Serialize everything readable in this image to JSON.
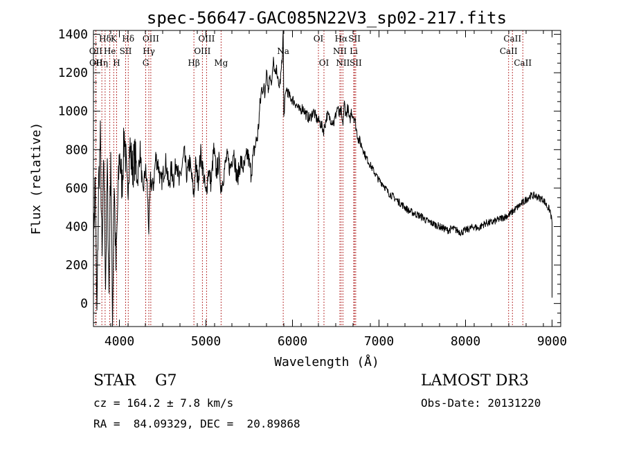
{
  "chart_data": {
    "type": "line",
    "title": "spec-56647-GAC085N22V3_sp02-217.fits",
    "xlabel": "Wavelength (Å)",
    "ylabel": "Flux (relative)",
    "xlim": [
      3700,
      9100
    ],
    "ylim": [
      -120,
      1420
    ],
    "x_ticks": [
      4000,
      5000,
      6000,
      7000,
      8000,
      9000
    ],
    "x_tick_labels": [
      "4000",
      "5000",
      "6000",
      "7000",
      "8000",
      "9000"
    ],
    "y_ticks": [
      0,
      200,
      400,
      600,
      800,
      1000,
      1200,
      1400
    ],
    "y_tick_labels": [
      "0",
      "200",
      "400",
      "600",
      "800",
      "1000",
      "1200",
      "1400"
    ],
    "grid": false,
    "line_color": "#000000",
    "marker_color": "#b22222",
    "series": [
      {
        "name": "flux",
        "x": [
          3700,
          3720,
          3740,
          3760,
          3780,
          3800,
          3820,
          3840,
          3860,
          3880,
          3900,
          3920,
          3940,
          3960,
          3980,
          4000,
          4030,
          4060,
          4090,
          4120,
          4150,
          4180,
          4210,
          4240,
          4270,
          4300,
          4320,
          4340,
          4360,
          4390,
          4420,
          4450,
          4480,
          4510,
          4540,
          4570,
          4600,
          4630,
          4660,
          4690,
          4720,
          4750,
          4780,
          4810,
          4840,
          4861,
          4880,
          4910,
          4940,
          4970,
          5000,
          5030,
          5060,
          5090,
          5120,
          5150,
          5175,
          5200,
          5240,
          5280,
          5320,
          5360,
          5400,
          5440,
          5480,
          5520,
          5560,
          5600,
          5620,
          5640,
          5660,
          5680,
          5700,
          5720,
          5740,
          5760,
          5780,
          5800,
          5820,
          5840,
          5860,
          5880,
          5893,
          5900,
          5910,
          5930,
          5960,
          6000,
          6040,
          6080,
          6120,
          6160,
          6200,
          6240,
          6280,
          6320,
          6360,
          6400,
          6440,
          6480,
          6520,
          6540,
          6563,
          6580,
          6600,
          6620,
          6640,
          6660,
          6680,
          6700,
          6720,
          6740,
          6760,
          6800,
          6850,
          6900,
          6950,
          7000,
          7050,
          7100,
          7150,
          7200,
          7250,
          7300,
          7350,
          7400,
          7450,
          7500,
          7550,
          7600,
          7650,
          7700,
          7750,
          7800,
          7850,
          7900,
          7950,
          8000,
          8050,
          8100,
          8150,
          8200,
          8250,
          8300,
          8350,
          8400,
          8450,
          8500,
          8550,
          8600,
          8650,
          8700,
          8750,
          8800,
          8850,
          8900,
          8950,
          8980,
          9000
        ],
        "y": [
          300,
          650,
          -80,
          620,
          850,
          200,
          760,
          120,
          700,
          50,
          820,
          -100,
          640,
          180,
          500,
          780,
          620,
          900,
          560,
          820,
          700,
          760,
          640,
          800,
          560,
          700,
          620,
          380,
          640,
          600,
          760,
          720,
          620,
          680,
          740,
          600,
          700,
          640,
          760,
          620,
          700,
          780,
          660,
          740,
          640,
          560,
          720,
          640,
          780,
          680,
          560,
          700,
          620,
          800,
          680,
          740,
          600,
          660,
          760,
          700,
          800,
          640,
          740,
          700,
          780,
          680,
          800,
          880,
          1000,
          1100,
          1140,
          1080,
          1240,
          1100,
          1200,
          1140,
          1260,
          1180,
          1220,
          1120,
          1160,
          1260,
          1420,
          960,
          1040,
          1120,
          1080,
          1060,
          1040,
          1000,
          1020,
          980,
          960,
          1000,
          960,
          940,
          900,
          980,
          960,
          940,
          1020,
          980,
          1000,
          920,
          1040,
          980,
          1020,
          940,
          1000,
          980,
          960,
          900,
          860,
          820,
          760,
          720,
          680,
          640,
          620,
          580,
          560,
          540,
          520,
          500,
          480,
          470,
          460,
          450,
          430,
          420,
          410,
          400,
          390,
          380,
          390,
          380,
          370,
          380,
          390,
          400,
          390,
          410,
          420,
          420,
          430,
          440,
          450,
          460,
          480,
          500,
          520,
          540,
          560,
          560,
          550,
          540,
          500,
          480,
          420
        ]
      }
    ],
    "line_markers": [
      {
        "label": "Hδ",
        "x": 4102,
        "row": 0
      },
      {
        "label": "K",
        "x": 3934,
        "row": 0
      },
      {
        "label": "Hδ",
        "x": 3835,
        "row": 0
      },
      {
        "label": "OIII",
        "x": 4363,
        "row": 0
      },
      {
        "label": "OIII",
        "x": 5007,
        "row": 0
      },
      {
        "label": "OI",
        "x": 6300,
        "row": 0
      },
      {
        "label": "Hα",
        "x": 6563,
        "row": 0
      },
      {
        "label": "SII",
        "x": 6717,
        "row": 0
      },
      {
        "label": "CaII",
        "x": 8542,
        "row": 0
      },
      {
        "label": "OII",
        "x": 3727,
        "row": 1
      },
      {
        "label": "He",
        "x": 3889,
        "row": 1
      },
      {
        "label": "SII",
        "x": 4072,
        "row": 1
      },
      {
        "label": "Hγ",
        "x": 4340,
        "row": 1
      },
      {
        "label": "OIII",
        "x": 4959,
        "row": 1
      },
      {
        "label": "Na",
        "x": 5893,
        "row": 1
      },
      {
        "label": "NII",
        "x": 6548,
        "row": 1
      },
      {
        "label": "Li",
        "x": 6708,
        "row": 1
      },
      {
        "label": "CaII",
        "x": 8498,
        "row": 1
      },
      {
        "label": "OII",
        "x": 3729,
        "row": 2
      },
      {
        "label": "Hη",
        "x": 3797,
        "row": 2
      },
      {
        "label": "H",
        "x": 3968,
        "row": 2
      },
      {
        "label": "G",
        "x": 4304,
        "row": 2
      },
      {
        "label": "Hβ",
        "x": 4861,
        "row": 2
      },
      {
        "label": "Mg",
        "x": 5175,
        "row": 2
      },
      {
        "label": "OI",
        "x": 6364,
        "row": 2
      },
      {
        "label": "NII",
        "x": 6583,
        "row": 2
      },
      {
        "label": "SII",
        "x": 6731,
        "row": 2
      },
      {
        "label": "CaII",
        "x": 8662,
        "row": 2
      }
    ]
  },
  "info": {
    "class_line": "STAR    G7",
    "survey": "LAMOST DR3",
    "cz_line": "cz = 164.2 ± 7.8 km/s",
    "obs_date": "Obs-Date: 20131220",
    "coords": "RA =  84.09329, DEC =  20.89868"
  }
}
